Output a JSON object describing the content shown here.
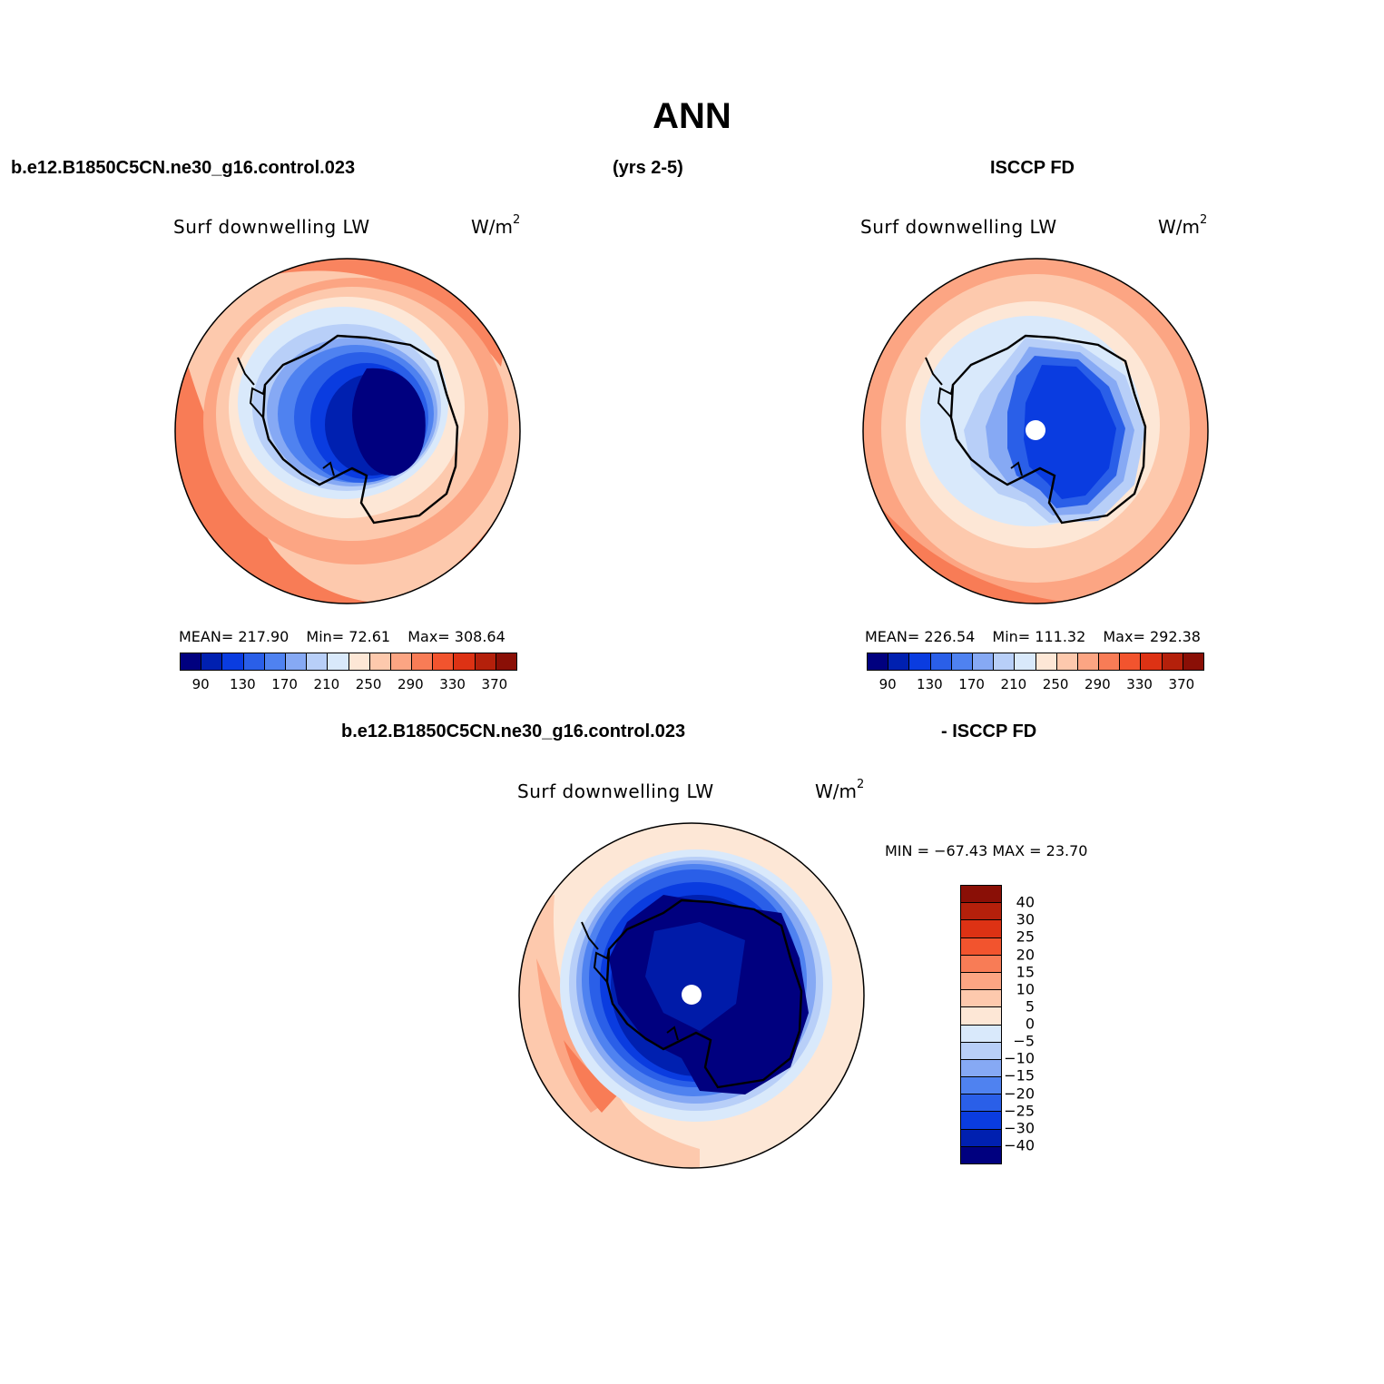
{
  "figure": {
    "title": "ANN",
    "case_name": "b.e12.B1850C5CN.ne30_g16.control.023",
    "years": "(yrs 2-5)",
    "obs_name": "ISCCP FD",
    "diff_case": "b.e12.B1850C5CN.ne30_g16.control.023",
    "diff_obs": "- ISCCP FD"
  },
  "panels": [
    {
      "id": "model",
      "title": "Surf downwelling LW",
      "units_base": "W/m",
      "units_exp": "2",
      "stats": {
        "mean_label": "MEAN=",
        "mean": "217.90",
        "min_label": "Min=",
        "min": "72.61",
        "max_label": "Max=",
        "max": "308.64"
      }
    },
    {
      "id": "obs",
      "title": "Surf downwelling LW",
      "units_base": "W/m",
      "units_exp": "2",
      "stats": {
        "mean_label": "MEAN=",
        "mean": "226.54",
        "min_label": "Min=",
        "min": "111.32",
        "max_label": "Max=",
        "max": "292.38"
      }
    },
    {
      "id": "diff",
      "title": "Surf downwelling LW",
      "units_base": "W/m",
      "units_exp": "2",
      "minmax": "MIN = −67.43 MAX =  23.70"
    }
  ],
  "colorbar_abs": {
    "labels": [
      "90",
      "130",
      "170",
      "210",
      "250",
      "290",
      "330",
      "370"
    ],
    "colors": [
      "#00007f",
      "#0020b0",
      "#0a3ce0",
      "#2a5fe8",
      "#4f82f0",
      "#86a9f4",
      "#b8cff8",
      "#d9e9fb",
      "#fde7d6",
      "#fdc9ad",
      "#fca583",
      "#f87c56",
      "#f2542e",
      "#dd3214",
      "#b4200b",
      "#8a0f06"
    ]
  },
  "colorbar_diff": {
    "labels": [
      "40",
      "30",
      "25",
      "20",
      "15",
      "10",
      "5",
      "0",
      "−5",
      "−10",
      "−15",
      "−20",
      "−25",
      "−30",
      "−40"
    ],
    "colors": [
      "#8a0f06",
      "#b4200b",
      "#dd3214",
      "#f2542e",
      "#f87c56",
      "#fca583",
      "#fdc9ad",
      "#fde7d6",
      "#d9e9fb",
      "#b8cff8",
      "#86a9f4",
      "#4f82f0",
      "#2a5fe8",
      "#0a3ce0",
      "#0020b0",
      "#00007f"
    ]
  }
}
